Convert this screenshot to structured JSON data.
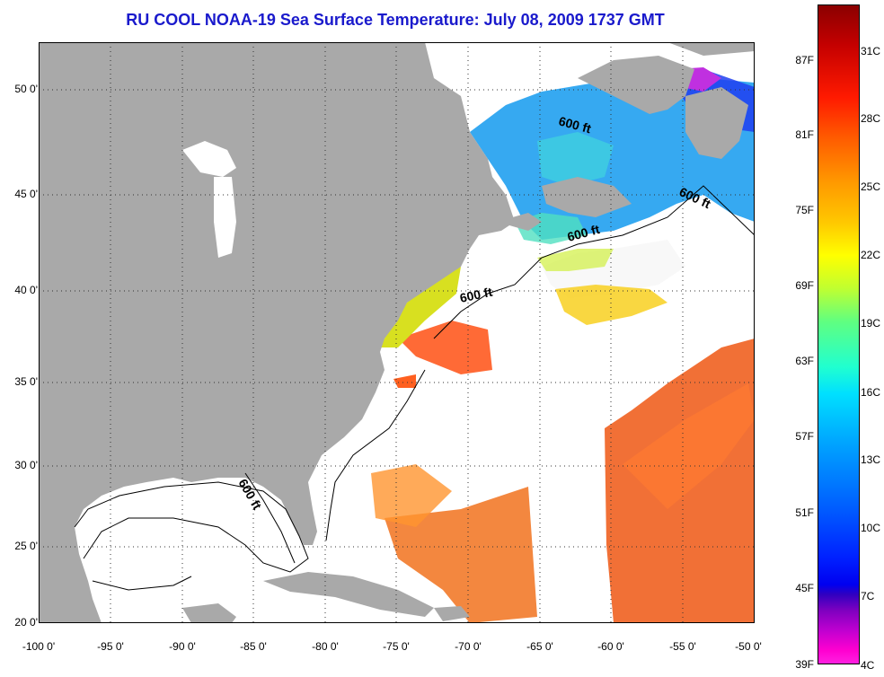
{
  "title": "RU COOL  NOAA-19  Sea Surface Temperature:  July 08, 2009 1737 GMT",
  "lat_labels": [
    "50 0'",
    "45 0'",
    "40 0'",
    "35 0'",
    "30 0'",
    "25 0'",
    "20 0'"
  ],
  "lon_labels": [
    "-100 0'",
    "-95 0'",
    "-90 0'",
    "-85 0'",
    "-80 0'",
    "-75 0'",
    "-70 0'",
    "-65 0'",
    "-60 0'",
    "-55 0'",
    "-50 0'"
  ],
  "contour_labels": [
    "600 ft",
    "600 ft",
    "600 ft",
    "600 ft",
    "600 ft"
  ],
  "colorbar": {
    "fahrenheit": [
      "87F",
      "81F",
      "75F",
      "69F",
      "63F",
      "57F",
      "51F",
      "45F",
      "39F"
    ],
    "celsius": [
      "31C",
      "28C",
      "25C",
      "22C",
      "19C",
      "16C",
      "13C",
      "10C",
      "7C",
      "4C"
    ]
  },
  "colors": {
    "land": "#a9a9a9",
    "no_data": "#ffffff",
    "title": "#1a1acc"
  }
}
